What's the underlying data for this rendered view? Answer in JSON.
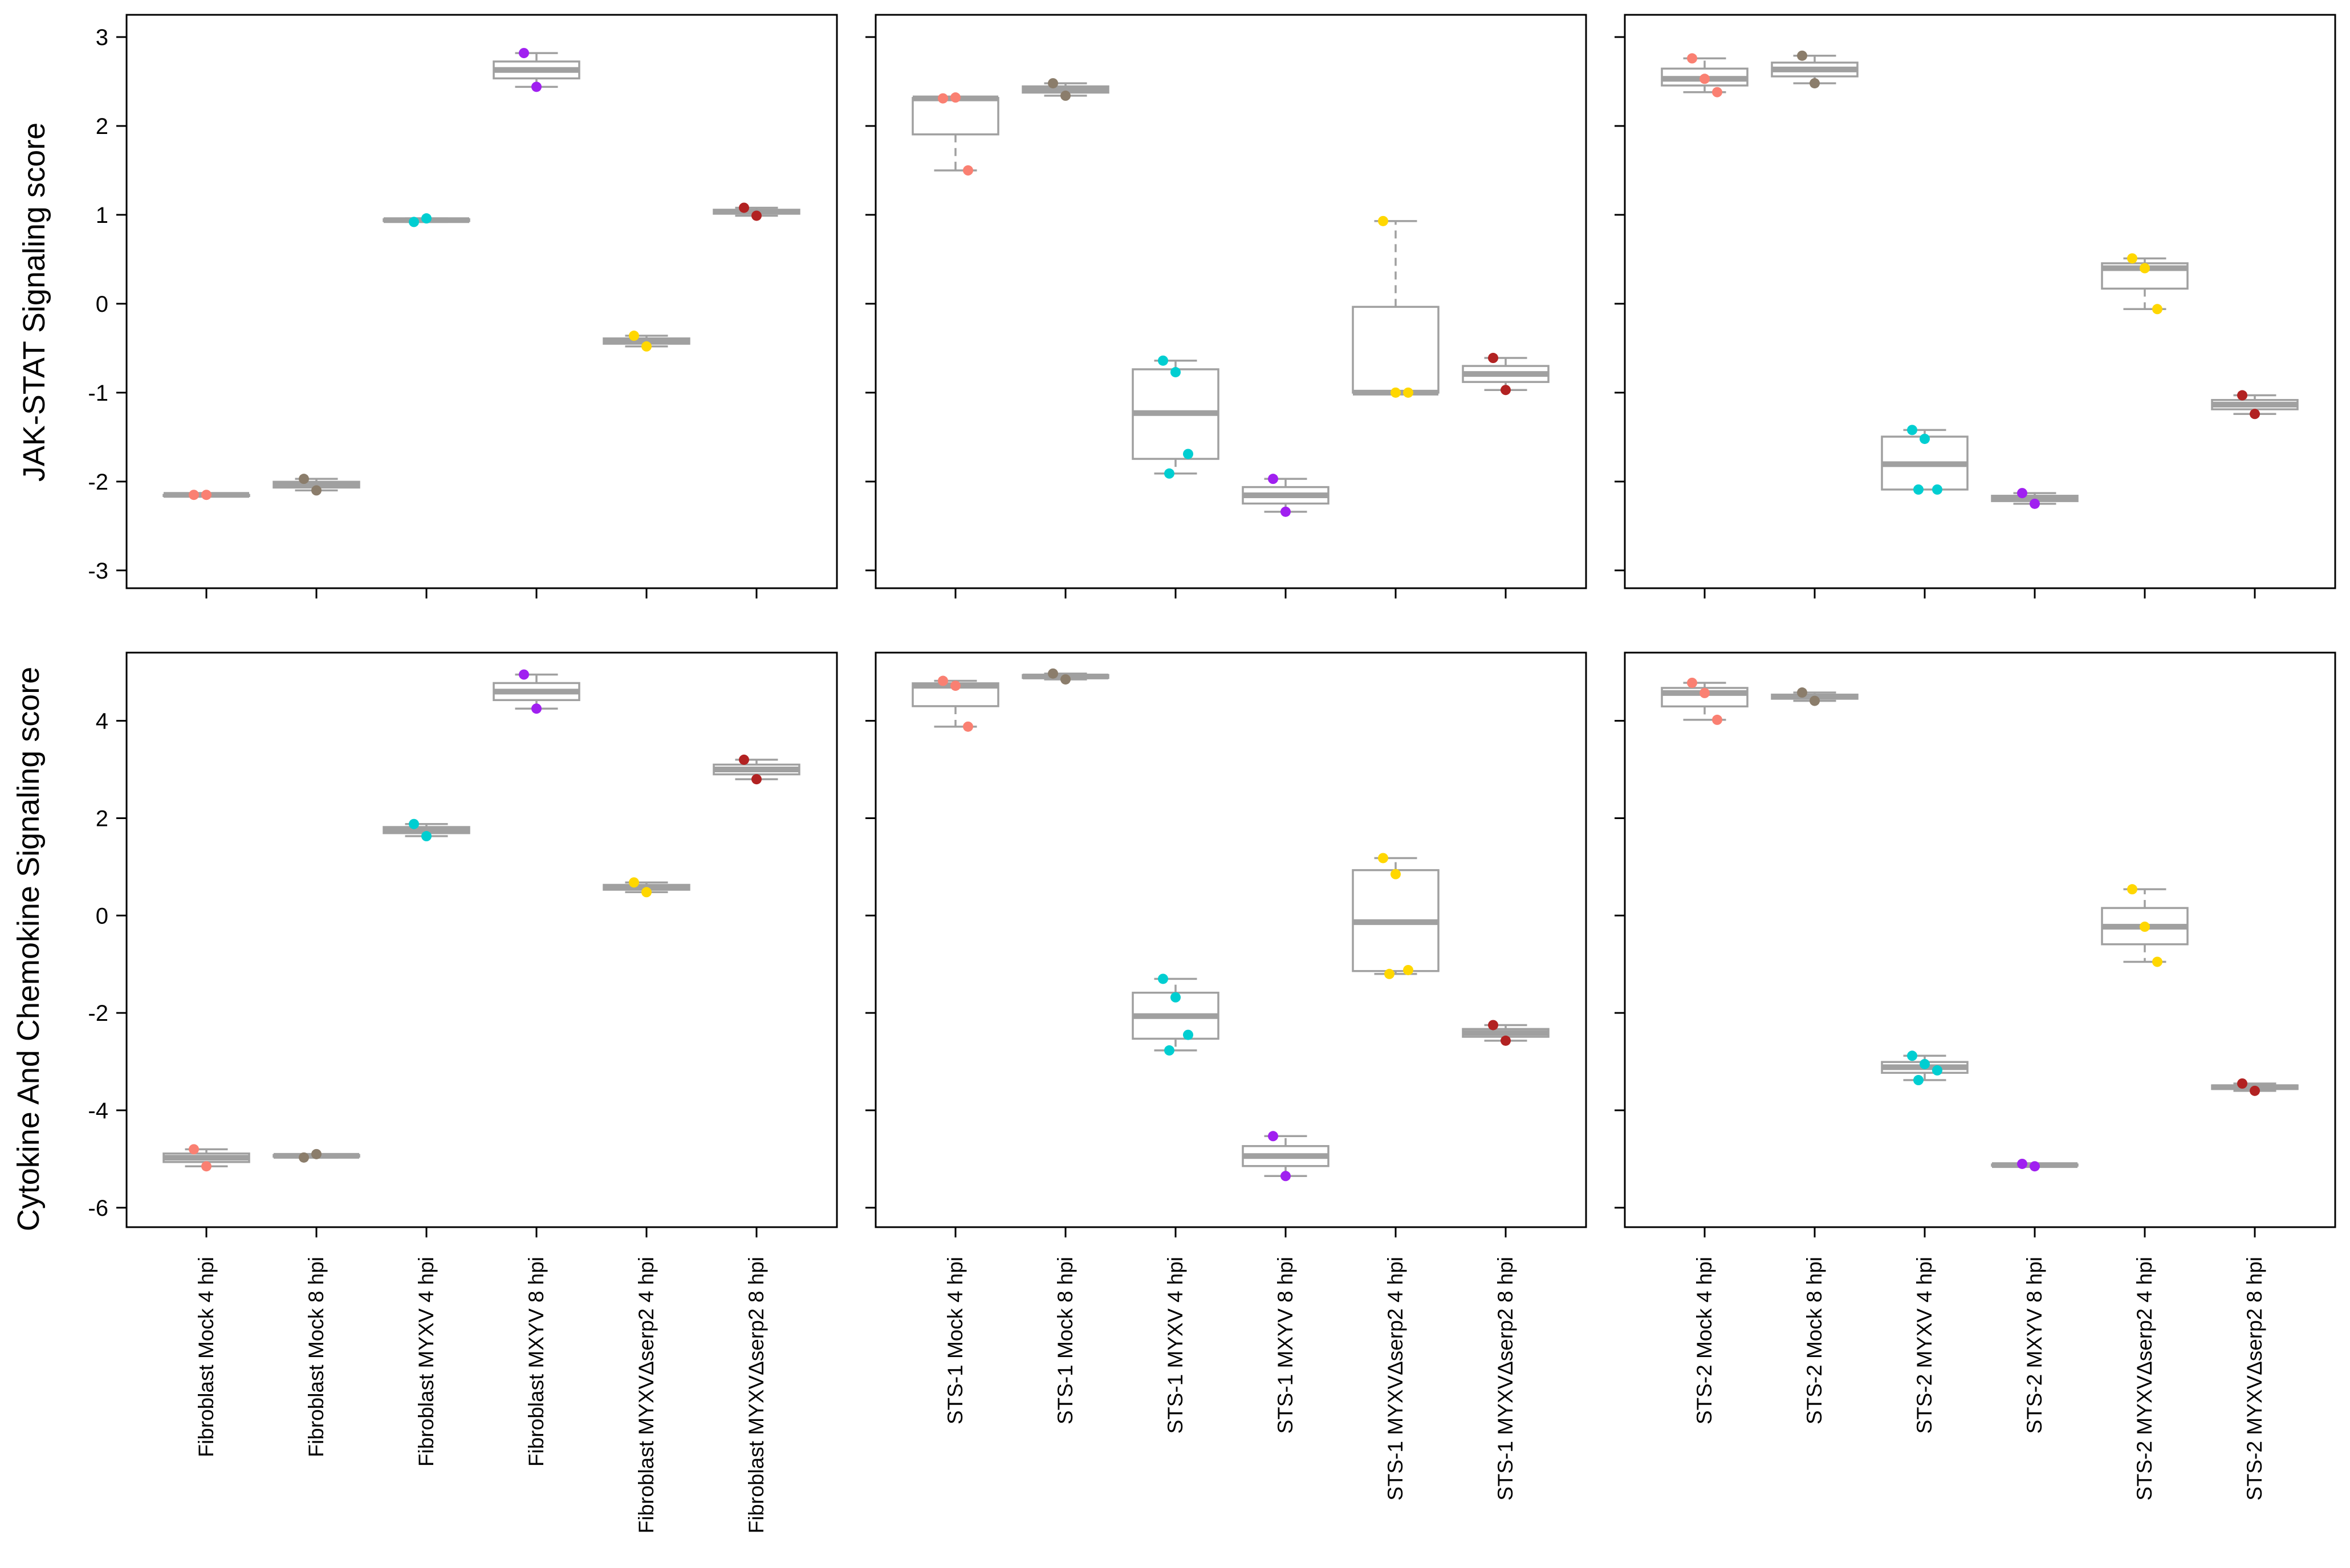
{
  "chart_data": {
    "type": "boxplot",
    "rows": [
      {
        "id": "jak",
        "ylabel": "JAK-STAT Signaling score",
        "ylim": [
          -3.2,
          3.25
        ],
        "yticks": [
          -3,
          -2,
          -1,
          0,
          1,
          2,
          3
        ]
      },
      {
        "id": "cyt",
        "ylabel": "Cytokine And Chemokine Signaling score",
        "ylim": [
          -6.4,
          5.4
        ],
        "yticks": [
          -6,
          -4,
          -2,
          0,
          2,
          4
        ]
      }
    ],
    "groups": [
      {
        "id": "fibroblast",
        "categories": [
          "Fibroblast Mock 4 hpi",
          "Fibroblast Mock 8 hpi",
          "Fibroblast MYXV 4 hpi",
          "Fibroblast MXYV 8 hpi",
          "Fibroblast MYXVΔserp2 4 hpi",
          "Fibroblast MYXVΔserp2 8 hpi"
        ],
        "jak": [
          [
            -2.15,
            -2.15
          ],
          [
            -1.97,
            -2.1
          ],
          [
            0.92,
            0.96
          ],
          [
            2.82,
            2.44
          ],
          [
            -0.36,
            -0.48
          ],
          [
            1.08,
            0.99
          ]
        ],
        "cyt": [
          [
            -4.8,
            -5.15
          ],
          [
            -4.97,
            -4.9
          ],
          [
            1.88,
            1.63
          ],
          [
            4.95,
            4.25
          ],
          [
            0.68,
            0.48
          ],
          [
            3.2,
            2.8
          ]
        ]
      },
      {
        "id": "sts1",
        "categories": [
          "STS-1 Mock 4 hpi",
          "STS-1 Mock 8 hpi",
          "STS-1 MYXV 4 hpi",
          "STS-1 MXYV 8 hpi",
          "STS-1 MYXVΔserp2 4 hpi",
          "STS-1 MYXVΔserp2 8 hpi"
        ],
        "jak": [
          [
            2.31,
            2.32,
            1.5
          ],
          [
            2.48,
            2.34
          ],
          [
            -0.64,
            -0.77,
            -1.69,
            -1.91
          ],
          [
            -1.97,
            -2.34
          ],
          [
            0.93,
            -1.0,
            -1.0
          ],
          [
            -0.61,
            -0.97
          ]
        ],
        "cyt": [
          [
            4.82,
            4.72,
            3.88
          ],
          [
            4.97,
            4.85
          ],
          [
            -1.3,
            -1.68,
            -2.45,
            -2.77
          ],
          [
            -4.53,
            -5.35
          ],
          [
            1.18,
            0.85,
            -1.12,
            -1.2
          ],
          [
            -2.25,
            -2.57
          ]
        ]
      },
      {
        "id": "sts2",
        "categories": [
          "STS-2 Mock 4 hpi",
          "STS-2 Mock 8 hpi",
          "STS-2 MYXV 4 hpi",
          "STS-2 MXYV 8 hpi",
          "STS-2 MYXVΔserp2 4 hpi",
          "STS-2 MYXVΔserp2 8 hpi"
        ],
        "jak": [
          [
            2.76,
            2.53,
            2.38
          ],
          [
            2.79,
            2.48
          ],
          [
            -1.42,
            -1.52,
            -2.09,
            -2.09
          ],
          [
            -2.13,
            -2.25
          ],
          [
            0.51,
            0.4,
            -0.06
          ],
          [
            -1.03,
            -1.24
          ]
        ],
        "cyt": [
          [
            4.78,
            4.57,
            4.02
          ],
          [
            4.58,
            4.41
          ],
          [
            -2.88,
            -3.05,
            -3.18,
            -3.38
          ],
          [
            -5.1,
            -5.15
          ],
          [
            0.54,
            -0.23,
            -0.95
          ],
          [
            -3.45,
            -3.6
          ]
        ]
      }
    ],
    "colors": [
      "#FA8072",
      "#8B7D6B",
      "#00CED1",
      "#A020F0",
      "#FFD700",
      "#B22222"
    ],
    "box_color": "#a0a0a0"
  }
}
